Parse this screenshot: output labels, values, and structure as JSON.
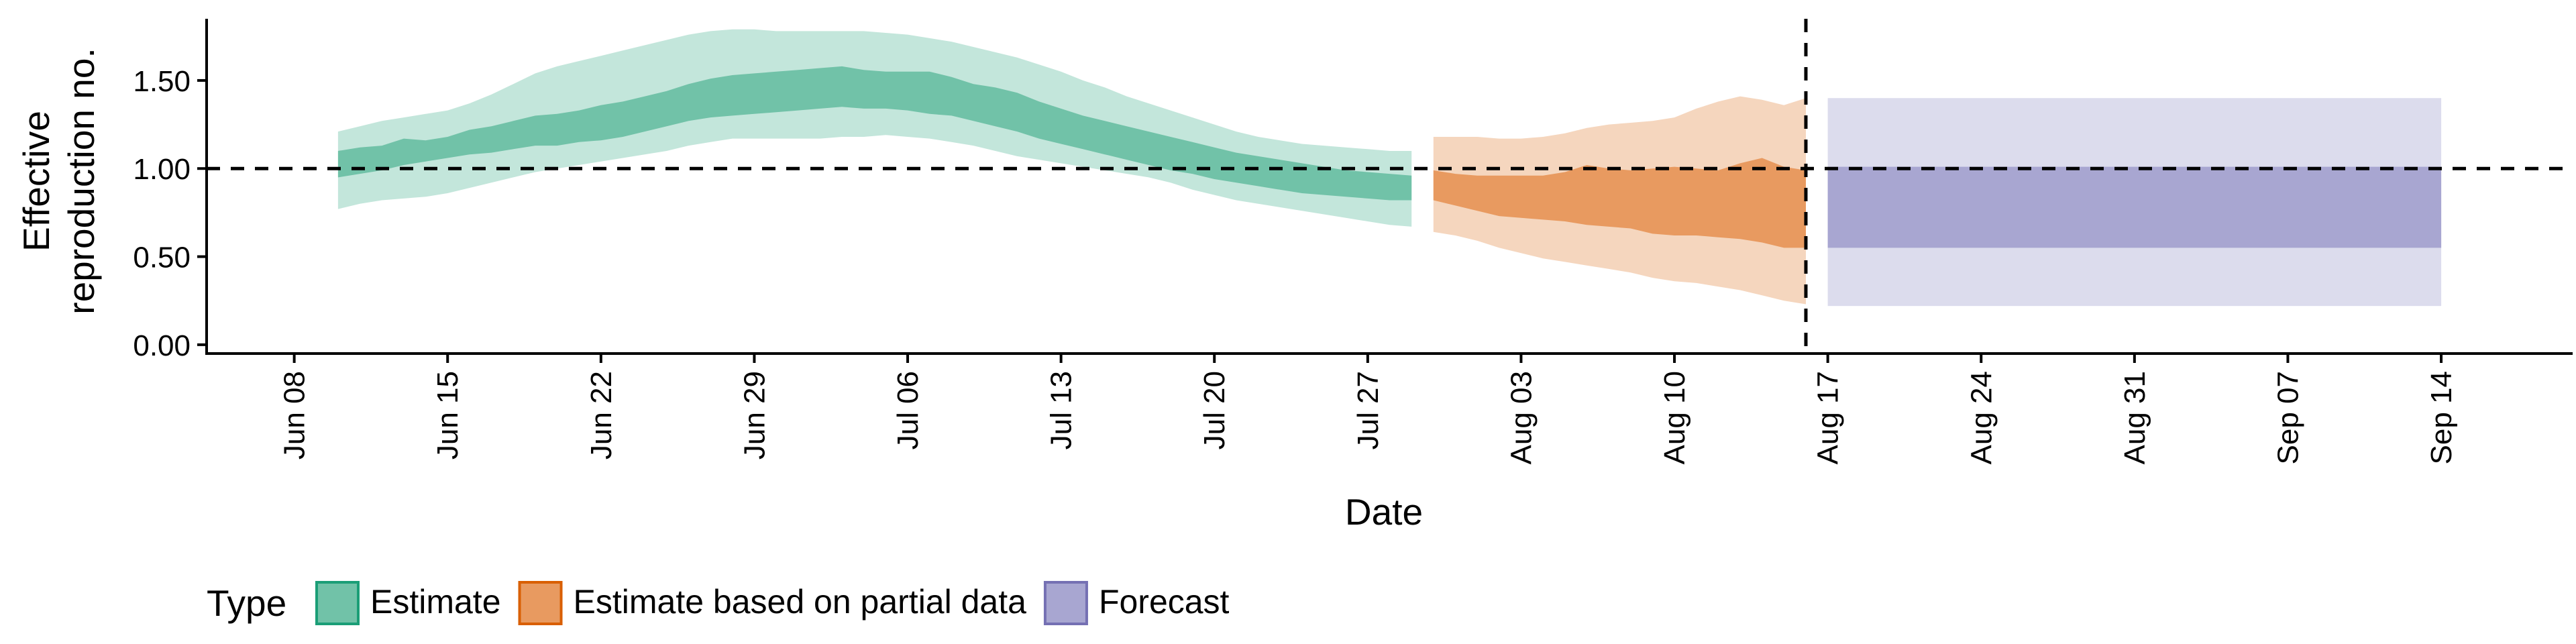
{
  "chart_data": {
    "type": "area",
    "title": "",
    "xlabel": "Date",
    "ylabel": "Effective reproduction no.",
    "ylabel_lines": [
      "Effective",
      "reproduction no."
    ],
    "xlim": [
      "2020-06-04",
      "2020-09-20"
    ],
    "ylim": [
      -0.05,
      1.85
    ],
    "grid": false,
    "x_ticks": [
      {
        "date": "2020-06-08",
        "label": "Jun 08"
      },
      {
        "date": "2020-06-15",
        "label": "Jun 15"
      },
      {
        "date": "2020-06-22",
        "label": "Jun 22"
      },
      {
        "date": "2020-06-29",
        "label": "Jun 29"
      },
      {
        "date": "2020-07-06",
        "label": "Jul 06"
      },
      {
        "date": "2020-07-13",
        "label": "Jul 13"
      },
      {
        "date": "2020-07-20",
        "label": "Jul 20"
      },
      {
        "date": "2020-07-27",
        "label": "Jul 27"
      },
      {
        "date": "2020-08-03",
        "label": "Aug 03"
      },
      {
        "date": "2020-08-10",
        "label": "Aug 10"
      },
      {
        "date": "2020-08-17",
        "label": "Aug 17"
      },
      {
        "date": "2020-08-24",
        "label": "Aug 24"
      },
      {
        "date": "2020-08-31",
        "label": "Aug 31"
      },
      {
        "date": "2020-09-07",
        "label": "Sep 07"
      },
      {
        "date": "2020-09-14",
        "label": "Sep 14"
      }
    ],
    "y_ticks": [
      {
        "value": 0.0,
        "label": "0.00"
      },
      {
        "value": 0.5,
        "label": "0.50"
      },
      {
        "value": 1.0,
        "label": "1.00"
      },
      {
        "value": 1.5,
        "label": "1.50"
      }
    ],
    "reference_lines": {
      "horizontal": 1.0,
      "vertical": "2020-08-16"
    },
    "legend": {
      "title": "Type",
      "position": "bottom"
    },
    "series": [
      {
        "name": "Estimate",
        "fill_outer": "#c3e6db",
        "fill_inner": "#71c2a8",
        "border": "#1b9e77",
        "x": [
          "2020-06-10",
          "2020-06-11",
          "2020-06-12",
          "2020-06-13",
          "2020-06-14",
          "2020-06-15",
          "2020-06-16",
          "2020-06-17",
          "2020-06-18",
          "2020-06-19",
          "2020-06-20",
          "2020-06-21",
          "2020-06-22",
          "2020-06-23",
          "2020-06-24",
          "2020-06-25",
          "2020-06-26",
          "2020-06-27",
          "2020-06-28",
          "2020-06-29",
          "2020-06-30",
          "2020-07-01",
          "2020-07-02",
          "2020-07-03",
          "2020-07-04",
          "2020-07-05",
          "2020-07-06",
          "2020-07-07",
          "2020-07-08",
          "2020-07-09",
          "2020-07-10",
          "2020-07-11",
          "2020-07-12",
          "2020-07-13",
          "2020-07-14",
          "2020-07-15",
          "2020-07-16",
          "2020-07-17",
          "2020-07-18",
          "2020-07-19",
          "2020-07-20",
          "2020-07-21",
          "2020-07-22",
          "2020-07-23",
          "2020-07-24",
          "2020-07-25",
          "2020-07-26",
          "2020-07-27",
          "2020-07-28",
          "2020-07-29"
        ],
        "outer_upper": [
          1.21,
          1.24,
          1.27,
          1.29,
          1.31,
          1.33,
          1.37,
          1.42,
          1.48,
          1.54,
          1.58,
          1.61,
          1.64,
          1.67,
          1.7,
          1.73,
          1.76,
          1.78,
          1.79,
          1.79,
          1.78,
          1.78,
          1.78,
          1.78,
          1.78,
          1.77,
          1.76,
          1.74,
          1.72,
          1.69,
          1.66,
          1.63,
          1.59,
          1.55,
          1.5,
          1.46,
          1.41,
          1.37,
          1.33,
          1.29,
          1.25,
          1.21,
          1.18,
          1.16,
          1.14,
          1.13,
          1.12,
          1.11,
          1.1,
          1.1
        ],
        "outer_lower": [
          0.77,
          0.8,
          0.82,
          0.83,
          0.84,
          0.86,
          0.89,
          0.92,
          0.95,
          0.98,
          1.0,
          1.02,
          1.04,
          1.06,
          1.08,
          1.1,
          1.13,
          1.15,
          1.17,
          1.17,
          1.17,
          1.17,
          1.17,
          1.18,
          1.18,
          1.19,
          1.18,
          1.17,
          1.15,
          1.13,
          1.1,
          1.07,
          1.05,
          1.03,
          1.01,
          0.99,
          0.97,
          0.95,
          0.92,
          0.88,
          0.85,
          0.82,
          0.8,
          0.78,
          0.76,
          0.74,
          0.72,
          0.7,
          0.68,
          0.67
        ],
        "inner_upper": [
          1.1,
          1.12,
          1.13,
          1.17,
          1.16,
          1.18,
          1.22,
          1.24,
          1.27,
          1.3,
          1.31,
          1.33,
          1.36,
          1.38,
          1.41,
          1.44,
          1.48,
          1.51,
          1.53,
          1.54,
          1.55,
          1.56,
          1.57,
          1.58,
          1.56,
          1.55,
          1.55,
          1.55,
          1.52,
          1.48,
          1.46,
          1.43,
          1.38,
          1.34,
          1.3,
          1.27,
          1.24,
          1.21,
          1.18,
          1.15,
          1.12,
          1.09,
          1.07,
          1.05,
          1.03,
          1.01,
          0.99,
          0.98,
          0.97,
          0.96
        ],
        "inner_lower": [
          0.95,
          0.97,
          0.99,
          1.02,
          1.04,
          1.06,
          1.08,
          1.09,
          1.11,
          1.13,
          1.13,
          1.15,
          1.16,
          1.18,
          1.21,
          1.24,
          1.27,
          1.29,
          1.3,
          1.31,
          1.32,
          1.33,
          1.34,
          1.35,
          1.34,
          1.34,
          1.33,
          1.31,
          1.3,
          1.27,
          1.24,
          1.21,
          1.17,
          1.14,
          1.11,
          1.08,
          1.05,
          1.02,
          0.99,
          0.97,
          0.94,
          0.92,
          0.9,
          0.88,
          0.86,
          0.85,
          0.84,
          0.83,
          0.82,
          0.82
        ]
      },
      {
        "name": "Estimate based on partial data",
        "fill_outer": "#f5d6be",
        "fill_inner": "#e89a60",
        "border": "#d95f02",
        "x": [
          "2020-07-30",
          "2020-07-31",
          "2020-08-01",
          "2020-08-02",
          "2020-08-03",
          "2020-08-04",
          "2020-08-05",
          "2020-08-06",
          "2020-08-07",
          "2020-08-08",
          "2020-08-09",
          "2020-08-10",
          "2020-08-11",
          "2020-08-12",
          "2020-08-13",
          "2020-08-14",
          "2020-08-15",
          "2020-08-16"
        ],
        "outer_upper": [
          1.18,
          1.18,
          1.18,
          1.17,
          1.17,
          1.18,
          1.2,
          1.23,
          1.25,
          1.26,
          1.27,
          1.29,
          1.34,
          1.38,
          1.41,
          1.39,
          1.36,
          1.4
        ],
        "outer_lower": [
          0.64,
          0.62,
          0.59,
          0.55,
          0.52,
          0.49,
          0.47,
          0.45,
          0.43,
          0.41,
          0.38,
          0.36,
          0.35,
          0.33,
          0.31,
          0.28,
          0.25,
          0.23
        ],
        "inner_upper": [
          0.99,
          0.97,
          0.96,
          0.96,
          0.96,
          0.96,
          0.98,
          1.02,
          1.0,
          0.99,
          1.0,
          1.01,
          1.0,
          0.99,
          1.03,
          1.06,
          1.01,
          0.99
        ],
        "inner_lower": [
          0.82,
          0.79,
          0.76,
          0.73,
          0.72,
          0.71,
          0.7,
          0.68,
          0.67,
          0.66,
          0.63,
          0.62,
          0.62,
          0.61,
          0.6,
          0.58,
          0.55,
          0.55
        ]
      },
      {
        "name": "Forecast",
        "fill_outer": "#dcdced",
        "fill_inner": "#a8a6d1",
        "border": "#7570b3",
        "x": [
          "2020-08-17",
          "2020-09-14"
        ],
        "outer_upper": [
          1.4,
          1.4
        ],
        "outer_lower": [
          0.22,
          0.22
        ],
        "inner_upper": [
          1.01,
          1.01
        ],
        "inner_lower": [
          0.55,
          0.55
        ]
      }
    ]
  }
}
